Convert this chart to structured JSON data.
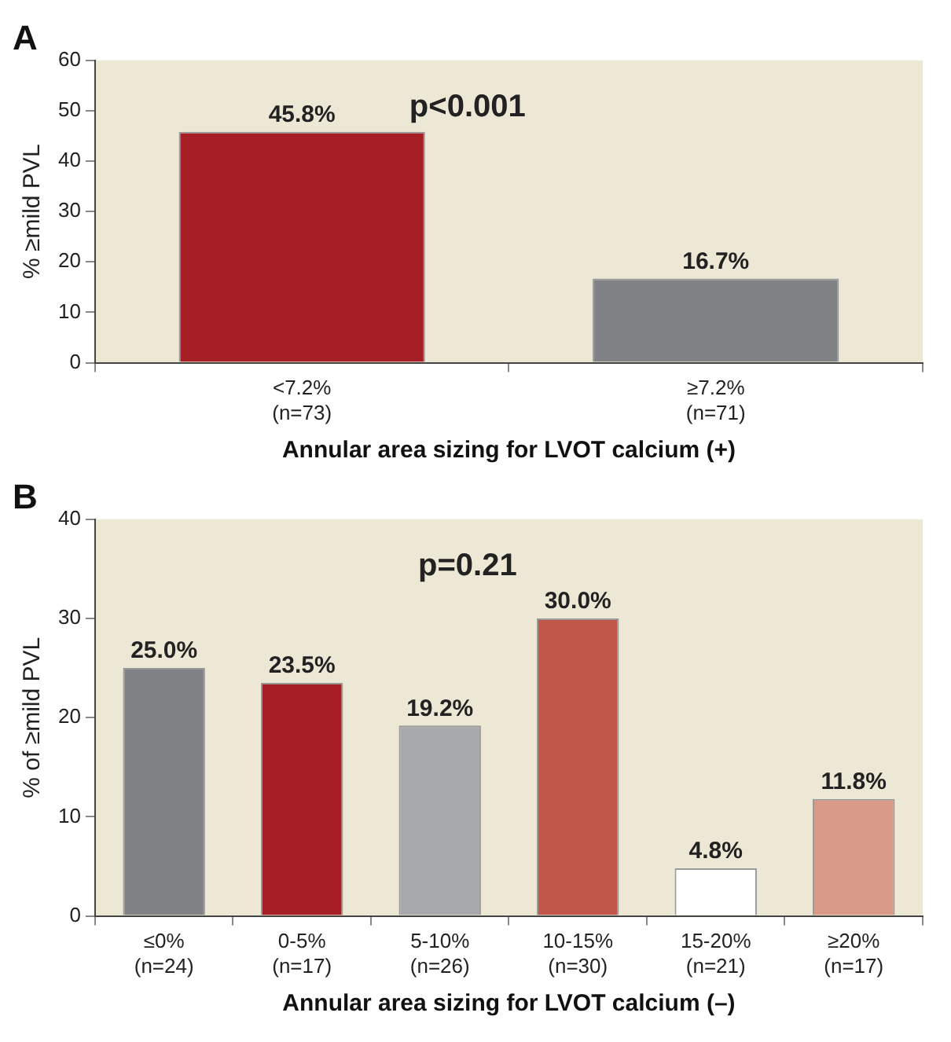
{
  "chart_data": [
    {
      "type": "bar",
      "title": "A",
      "categories": [
        "<7.2% (n=73)",
        "≥7.2% (n=71)"
      ],
      "values": [
        45.8,
        16.7
      ],
      "colors": [
        "#a51f24",
        "#808285"
      ],
      "value_labels": [
        "45.8%",
        "16.7%"
      ],
      "ylabel": "% ≥mild PVL",
      "xlabel": "Annular area sizing for LVOT calcium (+)",
      "ylim": [
        0,
        60
      ],
      "yticks": [
        0,
        10,
        20,
        30,
        40,
        50,
        60
      ],
      "annotations": [
        "p<0.001"
      ],
      "grid": false,
      "legend": false
    },
    {
      "type": "bar",
      "title": "B",
      "categories": [
        "≤0% (n=24)",
        "0-5% (n=17)",
        "5-10% (n=26)",
        "10-15% (n=30)",
        "15-20% (n=21)",
        "≥20% (n=17)"
      ],
      "values": [
        25.0,
        23.5,
        19.2,
        30.0,
        4.8,
        11.8
      ],
      "colors": [
        "#808285",
        "#a51f24",
        "#a7a9ac",
        "#c0574a",
        "#ffffff",
        "#d99a87"
      ],
      "value_labels": [
        "25.0%",
        "23.5%",
        "19.2%",
        "30.0%",
        "4.8%",
        "11.8%"
      ],
      "ylabel": "% of ≥mild PVL",
      "xlabel": "Annular area sizing for LVOT calcium (–)",
      "ylim": [
        0,
        40
      ],
      "yticks": [
        0,
        10,
        20,
        30,
        40
      ],
      "annotations": [
        "p=0.21"
      ],
      "grid": false,
      "legend": false
    }
  ]
}
